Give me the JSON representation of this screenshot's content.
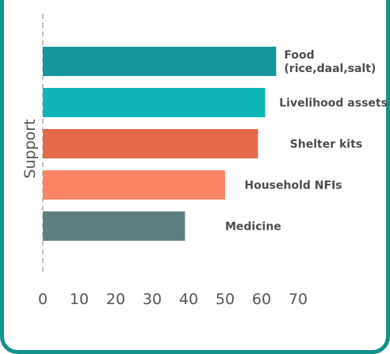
{
  "chart_data": {
    "type": "bar",
    "orientation": "horizontal",
    "ylabel": "Support",
    "xlabel": "",
    "xlim": [
      0,
      70
    ],
    "xticks": [
      0,
      10,
      20,
      30,
      40,
      50,
      60,
      70
    ],
    "grid": false,
    "categories": [
      [
        "Food",
        "(rice,daal,salt)"
      ],
      [
        "Livelihood assets"
      ],
      [
        "Shelter kits"
      ],
      [
        "Household NFIs"
      ],
      [
        "Medicine"
      ]
    ],
    "values": [
      64,
      61,
      59,
      50,
      39
    ],
    "colors": [
      "#16959a",
      "#10b4b8",
      "#e5694b",
      "#fb8466",
      "#5e7f80"
    ]
  }
}
